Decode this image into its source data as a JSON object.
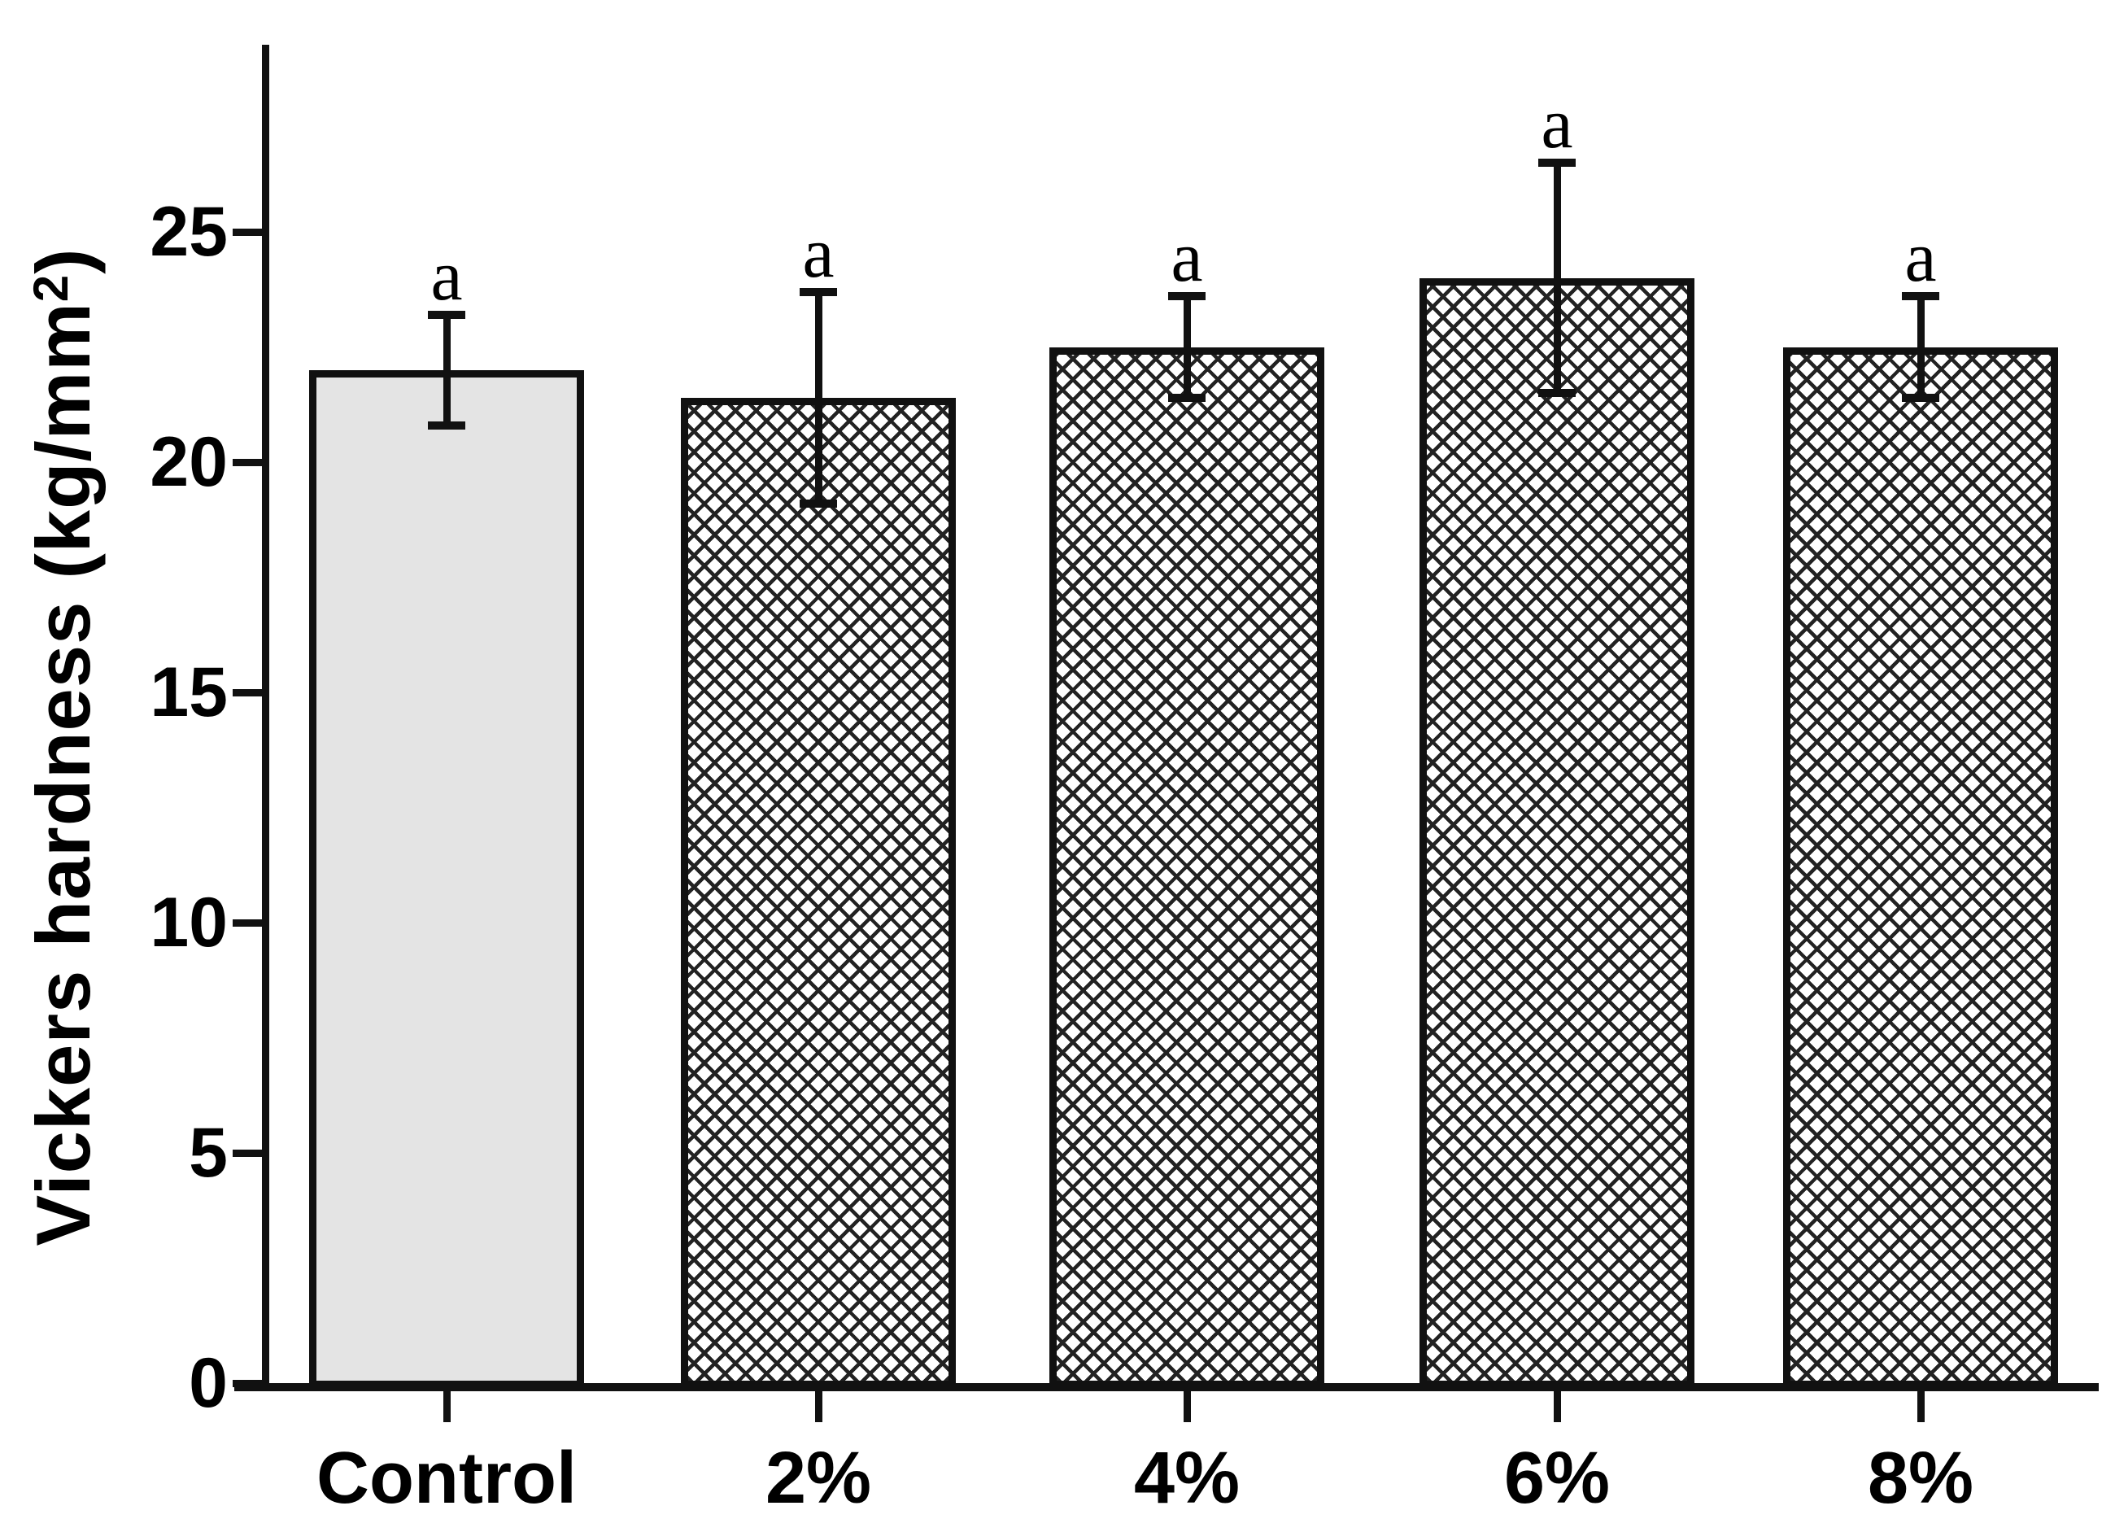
{
  "chart_data": {
    "type": "bar",
    "title": "",
    "categories": [
      "Control",
      "2%",
      "4%",
      "6%",
      "8%"
    ],
    "values": [
      22.0,
      21.4,
      22.5,
      24.0,
      22.5
    ],
    "errors": [
      1.2,
      2.3,
      1.1,
      2.5,
      1.1
    ],
    "sig_labels": [
      "a",
      "a",
      "a",
      "a",
      "a"
    ],
    "bar_patterns": [
      "solid",
      "crosshatch",
      "crosshatch",
      "crosshatch",
      "crosshatch"
    ],
    "ylabel": "Vickers hardness (kg/mm²)",
    "ylabel_prefix": "Vickers hardness (kg/mm",
    "ylabel_sup": "2",
    "ylabel_suffix": ")",
    "xlabel": "",
    "yticks": [
      25,
      20,
      15,
      10,
      5,
      0
    ],
    "ylim": [
      0,
      29
    ],
    "grid": false,
    "legend_position": "none",
    "colors": {
      "axis": "#111111",
      "bar_border": "#111111",
      "control_fill": "#e4e4e4",
      "hatch_line": "#222222",
      "background": "#ffffff",
      "text": "#000000"
    }
  }
}
